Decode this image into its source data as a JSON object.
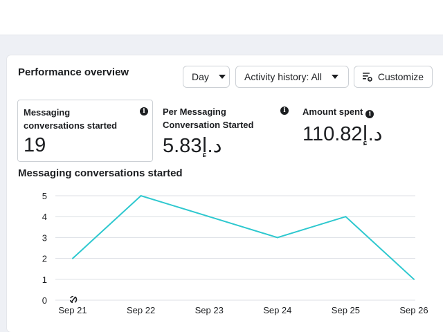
{
  "header": {
    "title": "Performance overview",
    "day_label": "Day",
    "activity_label": "Activity history: All",
    "customize_label": "Customize"
  },
  "metrics": [
    {
      "label": "Messaging conversations started",
      "value": "19"
    },
    {
      "label": "Per Messaging Conversation Started",
      "value": "5.83د.إ"
    },
    {
      "label": "Amount spent",
      "value": "110.82د.إ"
    }
  ],
  "icons": {
    "info": "info-icon",
    "caret": "chevron-down-icon",
    "customize": "settings-sliders-icon"
  },
  "colors": {
    "line": "#2ec8cf",
    "grid": "#dcdfe4"
  },
  "chart_data": {
    "type": "line",
    "title": "Messaging conversations started",
    "categories": [
      "Sep 21",
      "Sep 22",
      "Sep 23",
      "Sep 24",
      "Sep 25",
      "Sep 26"
    ],
    "values": [
      2,
      5,
      4,
      3,
      4,
      1
    ],
    "y_ticks": [
      "0",
      "1",
      "2",
      "3",
      "4",
      "5"
    ],
    "ylim": [
      0,
      5
    ],
    "grid": true
  }
}
